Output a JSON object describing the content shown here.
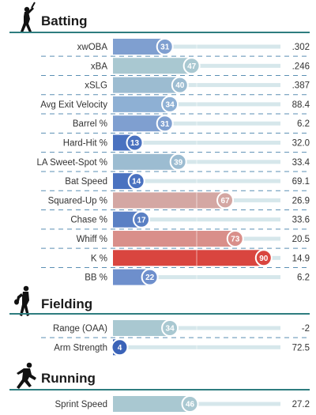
{
  "chart_data": {
    "type": "bar",
    "xlim": [
      0,
      100
    ],
    "colors": {
      "track": "#d6e7eb",
      "section_rule": "#2e7d7f",
      "separator": "#5b8fb4",
      "midline": "#ffffff"
    },
    "sections": [
      {
        "title": "Batting",
        "icon": "batter-icon",
        "metrics": [
          {
            "label": "xwOBA",
            "percentile": 31,
            "value": ".302",
            "color": "#7f9fd0"
          },
          {
            "label": "xBA",
            "percentile": 47,
            "value": ".246",
            "color": "#a9c8d1"
          },
          {
            "label": "xSLG",
            "percentile": 40,
            "value": ".387",
            "color": "#9cbcd1"
          },
          {
            "label": "Avg Exit Velocity",
            "percentile": 34,
            "value": "88.4",
            "color": "#8eb0d4"
          },
          {
            "label": "Barrel %",
            "percentile": 31,
            "value": "6.2",
            "color": "#7f9fd0"
          },
          {
            "label": "Hard-Hit %",
            "percentile": 13,
            "value": "32.0",
            "color": "#4a72c0"
          },
          {
            "label": "LA Sweet-Spot %",
            "percentile": 39,
            "value": "33.4",
            "color": "#9cbcd1"
          },
          {
            "label": "Bat Speed",
            "percentile": 14,
            "value": "69.1",
            "color": "#4a72c0"
          },
          {
            "label": "Squared-Up %",
            "percentile": 67,
            "value": "26.9",
            "color": "#d4a7a3"
          },
          {
            "label": "Chase %",
            "percentile": 17,
            "value": "33.6",
            "color": "#5a80c4"
          },
          {
            "label": "Whiff %",
            "percentile": 73,
            "value": "20.5",
            "color": "#d98f8a"
          },
          {
            "label": "K %",
            "percentile": 90,
            "value": "14.9",
            "color": "#d9453f"
          },
          {
            "label": "BB %",
            "percentile": 22,
            "value": "6.2",
            "color": "#6e8fcc"
          }
        ]
      },
      {
        "title": "Fielding",
        "icon": "fielder-icon",
        "metrics": [
          {
            "label": "Range (OAA)",
            "percentile": 34,
            "value": "-2",
            "color": "#a9c8d1"
          },
          {
            "label": "Arm Strength",
            "percentile": 4,
            "value": "72.5",
            "color": "#3b63b8"
          }
        ]
      },
      {
        "title": "Running",
        "icon": "runner-icon",
        "metrics": [
          {
            "label": "Sprint Speed",
            "percentile": 46,
            "value": "27.2",
            "color": "#a9c8d1"
          }
        ]
      }
    ]
  }
}
